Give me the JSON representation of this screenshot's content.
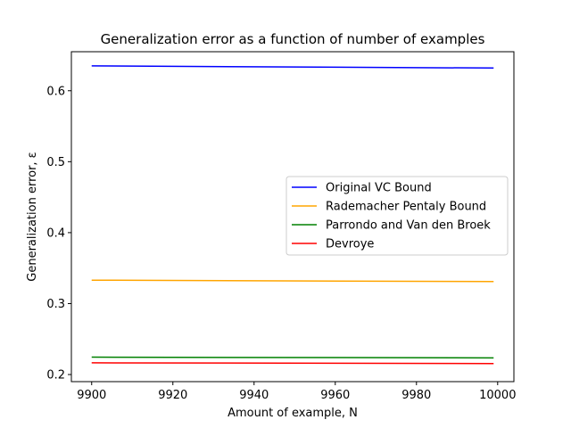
{
  "chart_data": {
    "type": "line",
    "title": "Generalization error as a function of number of examples",
    "xlabel": "Amount of example, N",
    "ylabel": "Generalization error, ε",
    "xlim": [
      9895,
      10004
    ],
    "ylim": [
      0.19,
      0.655
    ],
    "xticks": [
      9900,
      9920,
      9940,
      9960,
      9980,
      10000
    ],
    "yticks": [
      0.2,
      0.3,
      0.4,
      0.5,
      0.6
    ],
    "yticks_labels": [
      "0.2",
      "0.3",
      "0.4",
      "0.5",
      "0.6"
    ],
    "grid": false,
    "legend_position": "center-right",
    "x": [
      9900,
      9999
    ],
    "series": [
      {
        "name": "Original VC Bound",
        "color": "#0000ff",
        "values": [
          0.635,
          0.632
        ]
      },
      {
        "name": "Rademacher Pentaly Bound",
        "color": "#ffa500",
        "values": [
          0.333,
          0.331
        ]
      },
      {
        "name": "Parrondo and Van den Broek",
        "color": "#008000",
        "values": [
          0.2245,
          0.2235
        ]
      },
      {
        "name": "Devroye",
        "color": "#ff0000",
        "values": [
          0.2165,
          0.2155
        ]
      }
    ]
  }
}
